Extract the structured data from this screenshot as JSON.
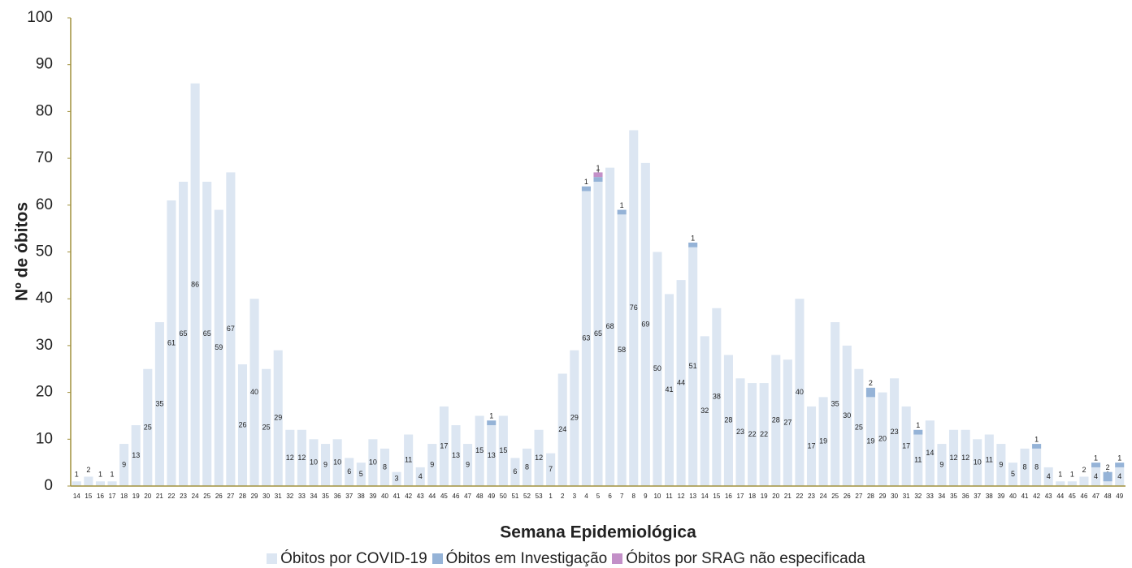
{
  "chart_data": {
    "type": "stacked_bar",
    "y_label": "Nº de óbitos",
    "x_label": "Semana Epidemiológica",
    "categories": [
      "14",
      "15",
      "16",
      "17",
      "18",
      "19",
      "20",
      "21",
      "22",
      "23",
      "24",
      "25",
      "26",
      "27",
      "28",
      "29",
      "30",
      "31",
      "32",
      "33",
      "34",
      "35",
      "36",
      "37",
      "38",
      "39",
      "40",
      "41",
      "42",
      "43",
      "44",
      "45",
      "46",
      "47",
      "48",
      "49",
      "50",
      "51",
      "52",
      "53",
      "1",
      "2",
      "3",
      "4",
      "5",
      "6",
      "7",
      "8",
      "9",
      "10",
      "11",
      "12",
      "13",
      "14",
      "15",
      "16",
      "17",
      "18",
      "19",
      "20",
      "21",
      "22",
      "23",
      "24",
      "25",
      "26",
      "27",
      "28",
      "29",
      "30",
      "31",
      "32",
      "33",
      "34",
      "35",
      "36",
      "37",
      "38",
      "39",
      "40",
      "41",
      "42",
      "43",
      "44",
      "45",
      "46",
      "47",
      "48",
      "49"
    ],
    "series": [
      {
        "name": "Óbitos por COVID-19",
        "color": "#dce6f2",
        "values": [
          1,
          2,
          1,
          1,
          9,
          13,
          25,
          35,
          61,
          65,
          86,
          65,
          59,
          67,
          26,
          40,
          25,
          29,
          12,
          12,
          10,
          9,
          10,
          6,
          5,
          10,
          8,
          3,
          11,
          4,
          9,
          17,
          13,
          9,
          15,
          13,
          15,
          6,
          8,
          12,
          7,
          24,
          29,
          63,
          65,
          68,
          58,
          76,
          69,
          50,
          41,
          44,
          51,
          32,
          38,
          28,
          23,
          22,
          22,
          28,
          27,
          40,
          17,
          19,
          35,
          30,
          25,
          19,
          20,
          23,
          17,
          11,
          14,
          9,
          12,
          12,
          10,
          11,
          9,
          5,
          8,
          8,
          4,
          1,
          1,
          2,
          4,
          1,
          4
        ]
      },
      {
        "name": "Óbitos em Investigação",
        "color": "#95b3d7",
        "values": [
          null,
          null,
          null,
          null,
          null,
          null,
          null,
          null,
          null,
          null,
          null,
          null,
          null,
          null,
          null,
          null,
          null,
          null,
          null,
          null,
          null,
          null,
          null,
          null,
          null,
          null,
          null,
          null,
          null,
          null,
          null,
          null,
          null,
          null,
          null,
          1,
          null,
          null,
          null,
          null,
          null,
          null,
          null,
          1,
          1,
          null,
          1,
          null,
          null,
          null,
          null,
          null,
          1,
          null,
          null,
          null,
          null,
          null,
          null,
          null,
          null,
          null,
          null,
          null,
          null,
          null,
          null,
          2,
          null,
          null,
          null,
          1,
          null,
          null,
          null,
          null,
          null,
          null,
          null,
          null,
          null,
          1,
          null,
          null,
          null,
          null,
          1,
          2,
          1
        ]
      },
      {
        "name": "Óbitos por SRAG não especificada",
        "color": "#c390c8",
        "values": [
          null,
          null,
          null,
          null,
          null,
          null,
          null,
          null,
          null,
          null,
          null,
          null,
          null,
          null,
          null,
          null,
          null,
          null,
          null,
          null,
          null,
          null,
          null,
          null,
          null,
          null,
          null,
          null,
          null,
          null,
          null,
          null,
          null,
          null,
          null,
          null,
          null,
          null,
          null,
          null,
          null,
          null,
          null,
          null,
          1,
          null,
          null,
          null,
          null,
          null,
          null,
          null,
          null,
          null,
          null,
          null,
          null,
          null,
          null,
          null,
          null,
          null,
          null,
          null,
          null,
          null,
          null,
          null,
          null,
          null,
          null,
          null,
          null,
          null,
          null,
          null,
          null,
          null,
          null,
          null,
          null,
          null,
          null,
          null,
          null,
          null,
          null,
          null,
          null
        ]
      }
    ],
    "ylim": [
      0,
      100
    ],
    "yticks": [
      0,
      10,
      20,
      30,
      40,
      50,
      60,
      70,
      80,
      90,
      100
    ],
    "axis_color": "#a0903c"
  }
}
